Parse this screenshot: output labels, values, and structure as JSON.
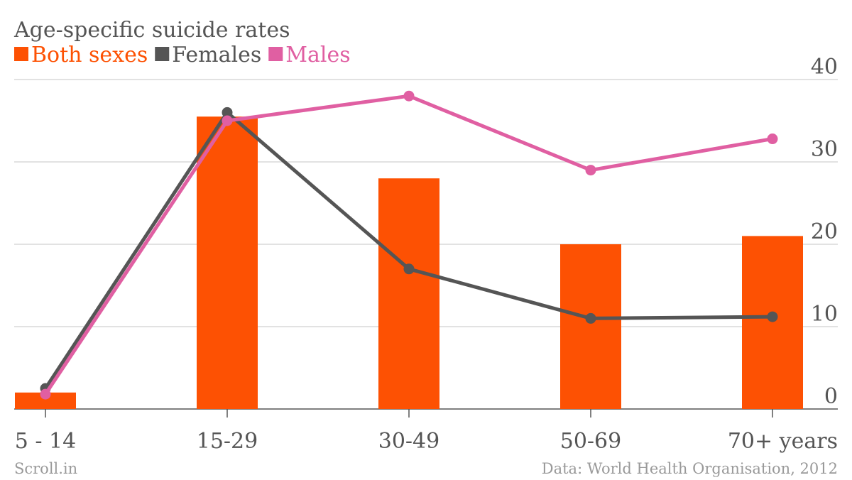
{
  "chart_data": {
    "type": "bar",
    "title": "Age-specific suicide rates",
    "categories": [
      "5 - 14",
      "15-29",
      "30-49",
      "50-69",
      "70+ years"
    ],
    "series": [
      {
        "name": "Both sexes",
        "type": "bar",
        "color": "#fd5103",
        "values": [
          2.0,
          35.5,
          28.0,
          20.0,
          21.0
        ]
      },
      {
        "name": "Females",
        "type": "line",
        "color": "#555555",
        "values": [
          2.5,
          36.0,
          17.0,
          11.0,
          11.2
        ]
      },
      {
        "name": "Males",
        "type": "line",
        "color": "#e05fa2",
        "values": [
          1.8,
          35.0,
          38.0,
          29.0,
          32.8
        ]
      }
    ],
    "ylim": [
      0,
      40
    ],
    "yticks": [
      "0",
      "10",
      "20",
      "30",
      "40"
    ],
    "yaxis_position": "right",
    "grid": true,
    "legend_position": "top-left"
  },
  "footer": {
    "source_left": "Scroll.in",
    "source_right": "Data: World Health Organisation, 2012"
  }
}
